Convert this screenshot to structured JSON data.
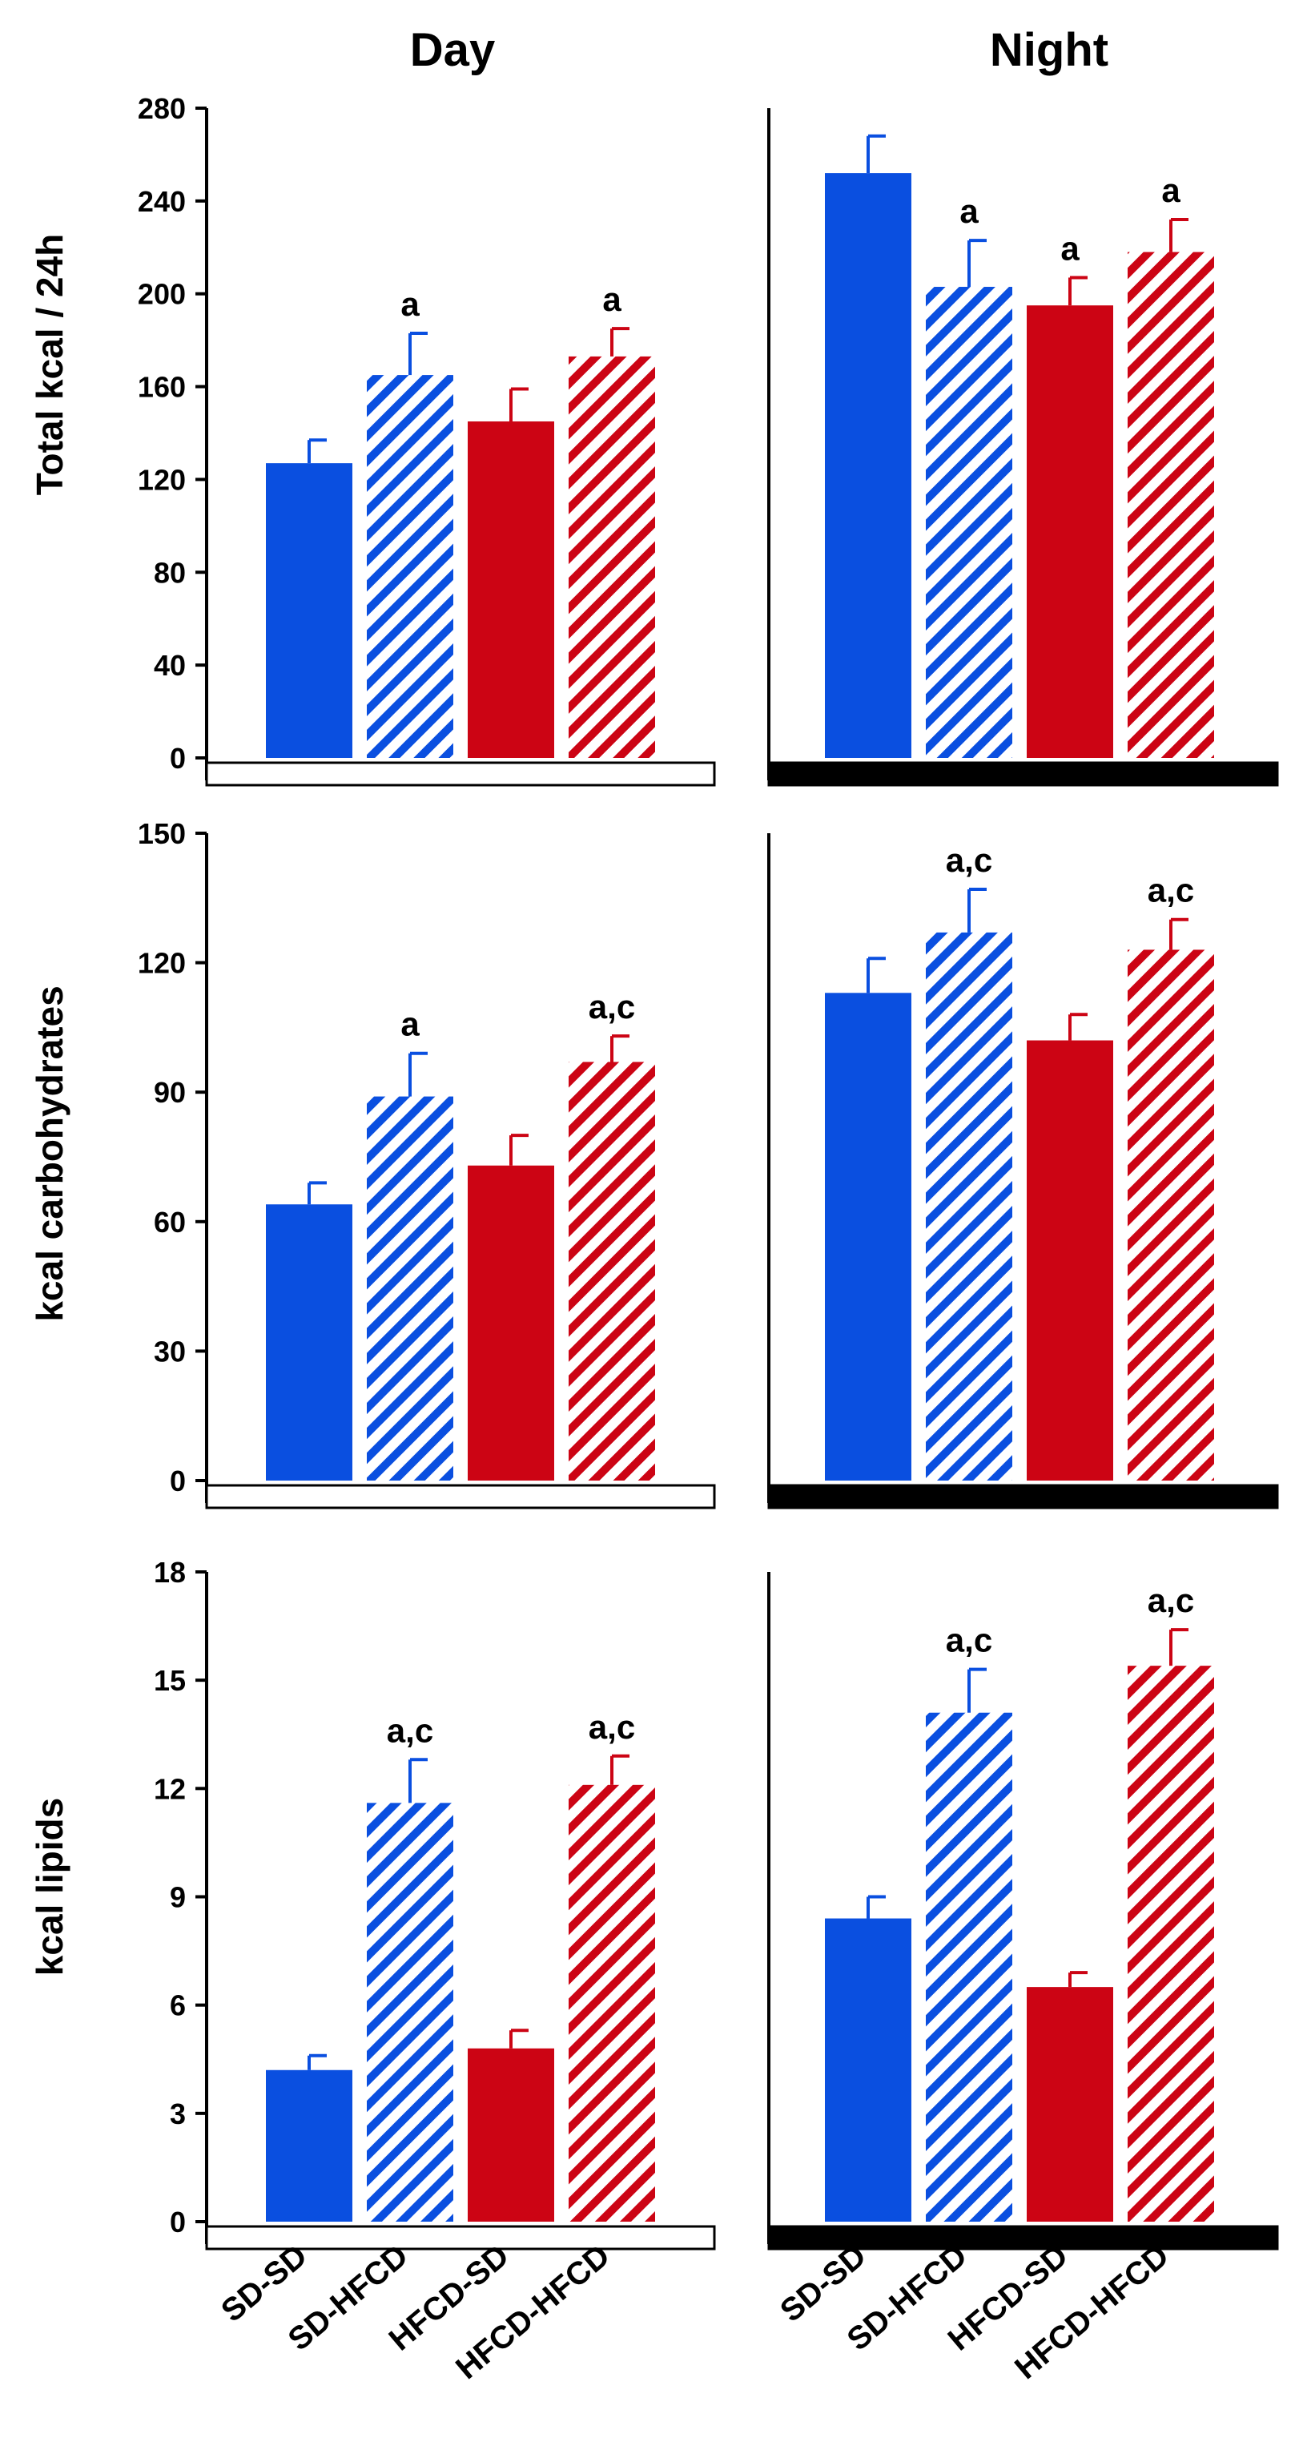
{
  "figure": {
    "columns": [
      "Day",
      "Night"
    ],
    "categories": [
      "SD-SD",
      "SD-HFCD",
      "HFCD-SD",
      "HFCD-HFCD"
    ]
  },
  "colors": {
    "blue": "#0a4fe0",
    "red": "#cc0414",
    "axis": "#000000",
    "day_bar": "#ffffff",
    "night_bar": "#000000"
  },
  "chart_data": [
    {
      "type": "bar",
      "panel": "Day",
      "title": "Day",
      "xlabel": "",
      "ylabel": "Total  kcal / 24h",
      "ylim": [
        0,
        280
      ],
      "ticks": [
        "0",
        "40",
        "80",
        "120",
        "160",
        "200",
        "240",
        "280"
      ],
      "categories": [
        "SD-SD",
        "SD-HFCD",
        "HFCD-SD",
        "HFCD-HFCD"
      ],
      "values": [
        127,
        165,
        145,
        173
      ],
      "errors": [
        10,
        18,
        14,
        12
      ],
      "labels": [
        "",
        "a",
        "",
        "a"
      ]
    },
    {
      "type": "bar",
      "panel": "Night",
      "title": "Night",
      "xlabel": "",
      "ylabel": "Total  kcal / 24h",
      "ylim": [
        0,
        280
      ],
      "ticks": [],
      "categories": [
        "SD-SD",
        "SD-HFCD",
        "HFCD-SD",
        "HFCD-HFCD"
      ],
      "values": [
        252,
        203,
        195,
        218
      ],
      "errors": [
        16,
        20,
        12,
        14
      ],
      "labels": [
        "",
        "a",
        "a",
        "a"
      ]
    },
    {
      "type": "bar",
      "panel": "Day",
      "title": "",
      "xlabel": "",
      "ylabel": "kcal carbohydrates",
      "ylim": [
        0,
        150
      ],
      "ticks": [
        "0",
        "30",
        "60",
        "90",
        "120",
        "150"
      ],
      "categories": [
        "SD-SD",
        "SD-HFCD",
        "HFCD-SD",
        "HFCD-HFCD"
      ],
      "values": [
        64,
        89,
        73,
        97
      ],
      "errors": [
        5,
        10,
        7,
        6
      ],
      "labels": [
        "",
        "a",
        "",
        "a,c"
      ]
    },
    {
      "type": "bar",
      "panel": "Night",
      "title": "",
      "xlabel": "",
      "ylabel": "kcal carbohydrates",
      "ylim": [
        0,
        150
      ],
      "ticks": [],
      "categories": [
        "SD-SD",
        "SD-HFCD",
        "HFCD-SD",
        "HFCD-HFCD"
      ],
      "values": [
        113,
        127,
        102,
        123
      ],
      "errors": [
        8,
        10,
        6,
        7
      ],
      "labels": [
        "",
        "a,c",
        "",
        "a,c"
      ]
    },
    {
      "type": "bar",
      "panel": "Day",
      "title": "",
      "xlabel": "",
      "ylabel": "kcal  lipids",
      "ylim": [
        0,
        18
      ],
      "ticks": [
        "0",
        "3",
        "6",
        "9",
        "12",
        "15",
        "18"
      ],
      "categories": [
        "SD-SD",
        "SD-HFCD",
        "HFCD-SD",
        "HFCD-HFCD"
      ],
      "values": [
        4.2,
        11.6,
        4.8,
        12.1
      ],
      "errors": [
        0.4,
        1.2,
        0.5,
        0.8
      ],
      "labels": [
        "",
        "a,c",
        "",
        "a,c"
      ]
    },
    {
      "type": "bar",
      "panel": "Night",
      "title": "",
      "xlabel": "",
      "ylabel": "kcal  lipids",
      "ylim": [
        0,
        18
      ],
      "ticks": [],
      "categories": [
        "SD-SD",
        "SD-HFCD",
        "HFCD-SD",
        "HFCD-HFCD"
      ],
      "values": [
        8.4,
        14.1,
        6.5,
        15.4
      ],
      "errors": [
        0.6,
        1.2,
        0.4,
        1.0
      ],
      "labels": [
        "",
        "a,c",
        "",
        "a,c"
      ]
    }
  ]
}
